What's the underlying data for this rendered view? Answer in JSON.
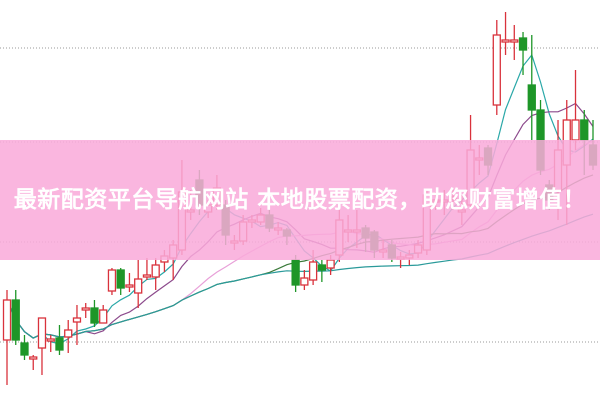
{
  "banner": {
    "text": "最新配资平台导航网站 本地股票配资，助您财富增值！"
  },
  "colors": {
    "up": "#d9323c",
    "down": "#1e9628",
    "banner": "#f9aada",
    "grid": "#999999"
  },
  "chart_data": {
    "type": "candlestick",
    "title": "",
    "xlabel": "",
    "ylabel": "",
    "ylim": [
      0,
      400
    ],
    "grid": true,
    "gridlines": [
      58,
      158,
      258,
      352
    ],
    "candles": [
      [
        60,
        100,
        110,
        15
      ],
      [
        100,
        60,
        110,
        55
      ],
      [
        57,
        45,
        65,
        40
      ],
      [
        43,
        43,
        45,
        30
      ],
      [
        52,
        82,
        70,
        25
      ],
      [
        61,
        61,
        65,
        48
      ],
      [
        62,
        50,
        75,
        45
      ],
      [
        63,
        70,
        80,
        47
      ],
      [
        78,
        82,
        95,
        55
      ],
      [
        92,
        92,
        97,
        82
      ],
      [
        92,
        77,
        100,
        73
      ],
      [
        77,
        90,
        95,
        78
      ],
      [
        109,
        130,
        132,
        105
      ],
      [
        130,
        112,
        132,
        105
      ],
      [
        115,
        115,
        127,
        108
      ],
      [
        107,
        121,
        140,
        92
      ],
      [
        125,
        125,
        142,
        120
      ],
      [
        123,
        135,
        142,
        110
      ],
      [
        138,
        144,
        150,
        128
      ],
      [
        142,
        155,
        160,
        120
      ],
      [
        150,
        208,
        240,
        145
      ],
      [
        190,
        190,
        210,
        180
      ],
      [
        220,
        195,
        230,
        185
      ],
      [
        188,
        195,
        200,
        182
      ],
      [
        195,
        212,
        225,
        190
      ],
      [
        195,
        165,
        200,
        155
      ],
      [
        159,
        159,
        165,
        150
      ],
      [
        159,
        178,
        185,
        155
      ],
      [
        180,
        180,
        185,
        172
      ],
      [
        178,
        185,
        192,
        175
      ],
      [
        185,
        172,
        190,
        168
      ],
      [
        172,
        172,
        178,
        165
      ],
      [
        170,
        164,
        172,
        155
      ],
      [
        140,
        115,
        145,
        108
      ],
      [
        115,
        122,
        130,
        110
      ],
      [
        120,
        138,
        150,
        115
      ],
      [
        135,
        130,
        140,
        118
      ],
      [
        132,
        140,
        145,
        125
      ],
      [
        145,
        180,
        190,
        138
      ],
      [
        170,
        170,
        185,
        158
      ],
      [
        170,
        170,
        190,
        152
      ],
      [
        172,
        162,
        175,
        148
      ],
      [
        168,
        150,
        170,
        142
      ],
      [
        150,
        150,
        160,
        142
      ],
      [
        155,
        142,
        160,
        138
      ],
      [
        143,
        143,
        148,
        132
      ],
      [
        142,
        145,
        150,
        135
      ],
      [
        147,
        155,
        160,
        142
      ],
      [
        150,
        205,
        210,
        145
      ],
      [
        200,
        200,
        208,
        190
      ],
      [
        200,
        200,
        210,
        185
      ],
      [
        203,
        203,
        210,
        190
      ],
      [
        190,
        190,
        205,
        175
      ],
      [
        195,
        250,
        285,
        190
      ],
      [
        242,
        242,
        255,
        225
      ],
      [
        252,
        235,
        255,
        225
      ],
      [
        295,
        365,
        380,
        285
      ],
      [
        360,
        360,
        388,
        345
      ],
      [
        360,
        360,
        375,
        340
      ],
      [
        362,
        350,
        368,
        325
      ],
      [
        315,
        290,
        365,
        260
      ],
      [
        290,
        230,
        300,
        225
      ],
      [
        215,
        200,
        220,
        190
      ],
      [
        210,
        250,
        280,
        180
      ],
      [
        235,
        280,
        300,
        175
      ],
      [
        260,
        280,
        330,
        250
      ],
      [
        280,
        260,
        290,
        225
      ],
      [
        255,
        235,
        280,
        230
      ]
    ],
    "moving_averages": [
      {
        "period": 5,
        "color": "#2aa8a8"
      },
      {
        "period": 10,
        "color": "#8c4a8c"
      },
      {
        "period": 20,
        "color": "#e8a0d8"
      },
      {
        "period": 30,
        "color": "#3a7a3a"
      },
      {
        "period": 60,
        "color": "#2a9a9a"
      }
    ]
  }
}
